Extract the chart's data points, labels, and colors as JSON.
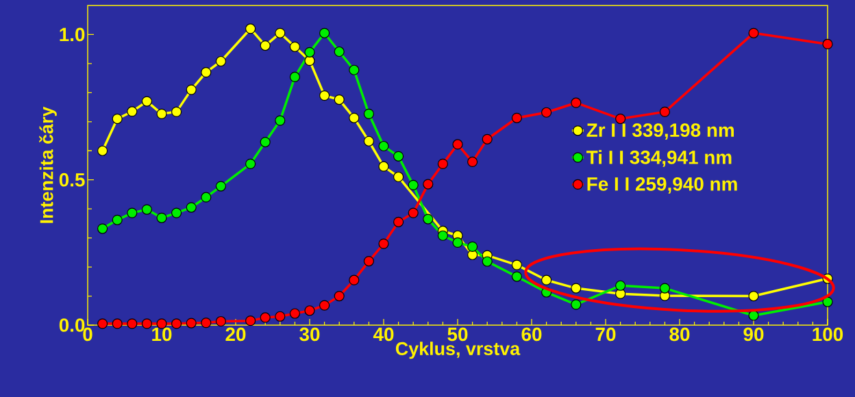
{
  "chart_data": {
    "type": "line",
    "xlabel": "Cyklus, vrstva",
    "ylabel": "Intenzita čáry",
    "xlim": [
      0,
      100
    ],
    "ylim": [
      0,
      1.1
    ],
    "xticks": [
      0,
      {
        "value": 2,
        "label": null
      },
      {
        "value": 4,
        "label": null
      },
      {
        "value": 6,
        "label": null
      },
      {
        "value": 8,
        "label": null
      },
      10,
      {
        "value": 12,
        "label": null
      },
      {
        "value": 14,
        "label": null
      },
      {
        "value": 16,
        "label": null
      },
      {
        "value": 18,
        "label": null
      },
      20,
      {
        "value": 22,
        "label": null
      },
      {
        "value": 24,
        "label": null
      },
      {
        "value": 26,
        "label": null
      },
      {
        "value": 28,
        "label": null
      },
      30,
      {
        "value": 32,
        "label": null
      },
      {
        "value": 34,
        "label": null
      },
      {
        "value": 36,
        "label": null
      },
      {
        "value": 38,
        "label": null
      },
      40,
      {
        "value": 42,
        "label": null
      },
      {
        "value": 44,
        "label": null
      },
      {
        "value": 46,
        "label": null
      },
      {
        "value": 48,
        "label": null
      },
      50,
      {
        "value": 52,
        "label": null
      },
      {
        "value": 54,
        "label": null
      },
      {
        "value": 56,
        "label": null
      },
      {
        "value": 58,
        "label": null
      },
      60,
      {
        "value": 62,
        "label": null
      },
      {
        "value": 64,
        "label": null
      },
      {
        "value": 66,
        "label": null
      },
      {
        "value": 68,
        "label": null
      },
      70,
      {
        "value": 72,
        "label": null
      },
      {
        "value": 74,
        "label": null
      },
      {
        "value": 76,
        "label": null
      },
      {
        "value": 78,
        "label": null
      },
      80,
      {
        "value": 82,
        "label": null
      },
      {
        "value": 84,
        "label": null
      },
      {
        "value": 86,
        "label": null
      },
      {
        "value": 88,
        "label": null
      },
      90,
      {
        "value": 92,
        "label": null
      },
      {
        "value": 94,
        "label": null
      },
      {
        "value": 96,
        "label": null
      },
      {
        "value": 98,
        "label": null
      },
      100
    ],
    "yticks": [
      {
        "value": 0,
        "label": "0.0"
      },
      {
        "value": 0.1,
        "label": null
      },
      {
        "value": 0.2,
        "label": null
      },
      {
        "value": 0.3,
        "label": null
      },
      {
        "value": 0.4,
        "label": null
      },
      {
        "value": 0.5,
        "label": "0.5"
      },
      {
        "value": 0.6,
        "label": null
      },
      {
        "value": 0.7,
        "label": null
      },
      {
        "value": 0.8,
        "label": null
      },
      {
        "value": 0.9,
        "label": null
      },
      {
        "value": 1.0,
        "label": "1.0"
      }
    ],
    "grid": false,
    "legend": "right",
    "marker": "circle",
    "line_style": "solid",
    "x": [
      2,
      4,
      6,
      8,
      10,
      12,
      14,
      16,
      18,
      22,
      24,
      26,
      28,
      30,
      32,
      34,
      36,
      38,
      40,
      42,
      44,
      46,
      48,
      50,
      52,
      54,
      58,
      62,
      66,
      72,
      78,
      90,
      100
    ],
    "series": [
      {
        "name": "Zr I I 339,198 nm",
        "color": "#ffff00",
        "values": [
          0.6,
          0.71,
          0.735,
          0.77,
          0.727,
          0.734,
          0.81,
          0.87,
          0.908,
          1.02,
          0.962,
          1.005,
          0.958,
          0.91,
          0.79,
          0.776,
          0.713,
          0.633,
          0.546,
          0.51,
          null,
          null,
          0.324,
          0.308,
          0.242,
          0.24,
          0.207,
          0.155,
          0.127,
          0.108,
          0.101,
          0.1,
          0.16
        ]
      },
      {
        "name": "Ti I I 334,941 nm",
        "color": "#00ee00",
        "values": [
          0.332,
          0.362,
          0.386,
          0.398,
          0.369,
          0.386,
          0.405,
          0.44,
          0.478,
          0.555,
          0.63,
          0.704,
          0.854,
          0.939,
          1.005,
          0.941,
          0.878,
          0.727,
          0.616,
          0.581,
          0.482,
          0.365,
          0.308,
          0.284,
          0.27,
          0.219,
          0.167,
          0.113,
          0.071,
          0.136,
          0.127,
          0.033,
          0.08
        ]
      },
      {
        "name": "Fe I I 259,940 nm",
        "color": "#ff0000",
        "values": [
          0.005,
          0.005,
          0.005,
          0.005,
          0.005,
          0.005,
          0.007,
          0.008,
          0.013,
          0.015,
          0.026,
          0.03,
          0.04,
          0.05,
          0.068,
          0.1,
          0.155,
          0.22,
          0.28,
          0.355,
          0.386,
          0.485,
          0.555,
          0.622,
          0.562,
          0.64,
          0.713,
          0.732,
          0.765,
          0.71,
          0.734,
          1.005,
          0.967
        ]
      }
    ]
  }
}
